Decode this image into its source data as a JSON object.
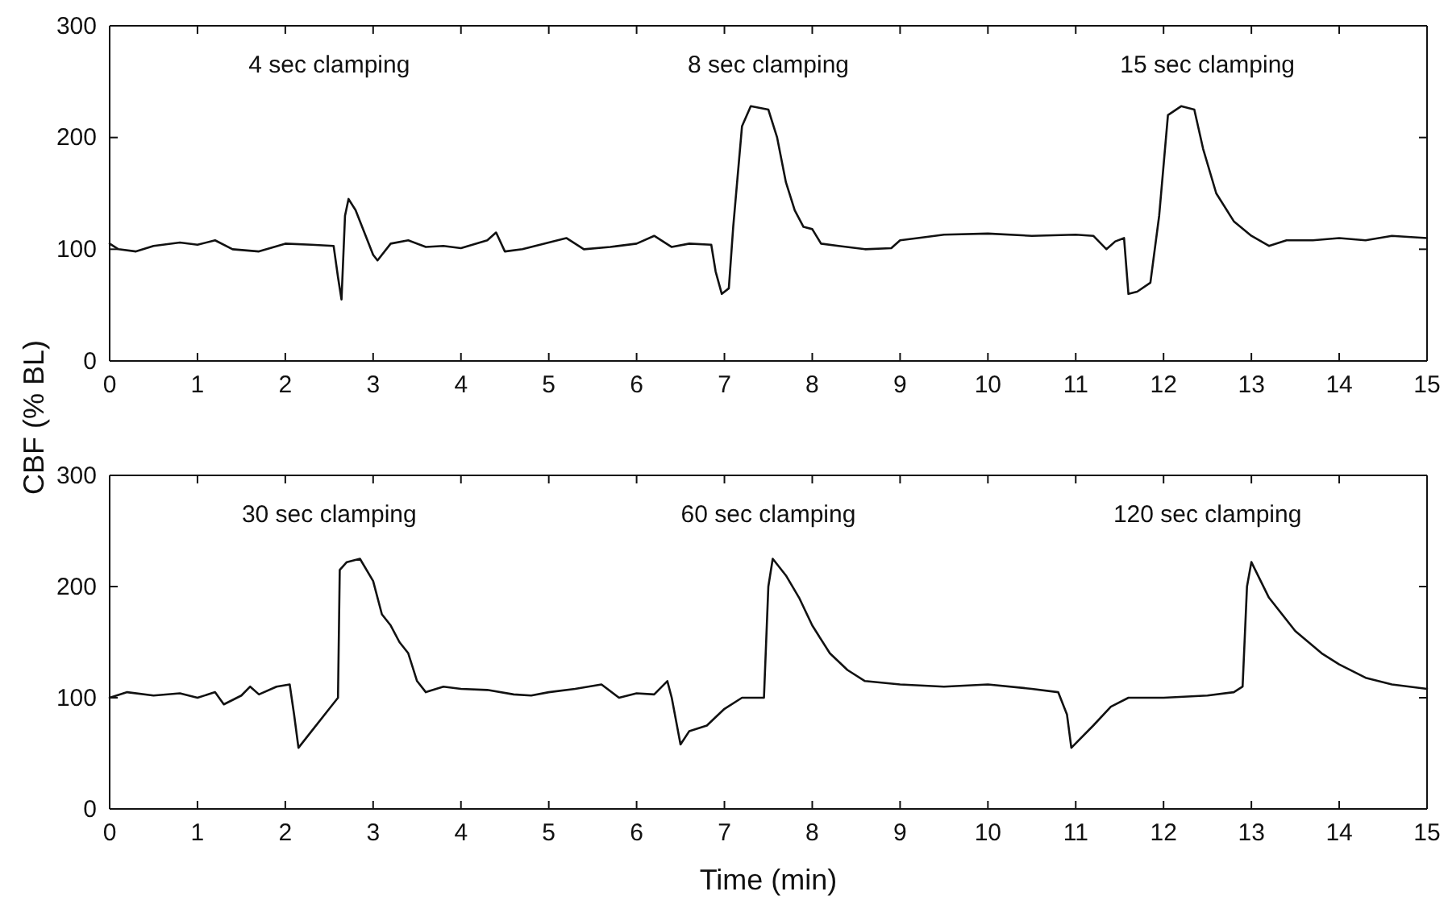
{
  "chart_data": [
    {
      "type": "line",
      "ylabel": "CBF (% BL)",
      "xlim": [
        0,
        15
      ],
      "ylim": [
        0,
        300
      ],
      "xticks": [
        0,
        1,
        2,
        3,
        4,
        5,
        6,
        7,
        8,
        9,
        10,
        11,
        12,
        13,
        14,
        15
      ],
      "yticks": [
        0,
        100,
        200,
        300
      ],
      "grid": false,
      "annotations": [
        "4 sec clamping",
        "8 sec clamping",
        "15 sec clamping"
      ],
      "series": [
        {
          "color": "#111111",
          "x": [
            0,
            0.1,
            0.3,
            0.5,
            0.8,
            1.0,
            1.2,
            1.4,
            1.7,
            2.0,
            2.3,
            2.55,
            2.6,
            2.64,
            2.68,
            2.72,
            2.8,
            2.9,
            3.0,
            3.05,
            3.2,
            3.4,
            3.6,
            3.8,
            4.0,
            4.3,
            4.4,
            4.5,
            4.7,
            5.0,
            5.2,
            5.4,
            5.7,
            6.0,
            6.2,
            6.4,
            6.6,
            6.85,
            6.9,
            6.97,
            7.05,
            7.1,
            7.2,
            7.3,
            7.5,
            7.6,
            7.7,
            7.8,
            7.9,
            8.0,
            8.1,
            8.3,
            8.6,
            8.9,
            9.0,
            9.2,
            9.5,
            10.0,
            10.5,
            11.0,
            11.2,
            11.35,
            11.45,
            11.55,
            11.6,
            11.7,
            11.85,
            11.95,
            12.05,
            12.2,
            12.35,
            12.45,
            12.6,
            12.8,
            13.0,
            13.2,
            13.4,
            13.7,
            14.0,
            14.3,
            14.6,
            15.0
          ],
          "values": [
            105,
            100,
            98,
            103,
            106,
            104,
            108,
            100,
            98,
            105,
            104,
            103,
            75,
            55,
            130,
            145,
            135,
            115,
            95,
            90,
            105,
            108,
            102,
            103,
            101,
            108,
            115,
            98,
            100,
            106,
            110,
            100,
            102,
            105,
            112,
            102,
            105,
            104,
            80,
            60,
            65,
            120,
            210,
            228,
            225,
            200,
            160,
            135,
            120,
            118,
            105,
            103,
            100,
            101,
            108,
            110,
            113,
            114,
            112,
            113,
            112,
            100,
            107,
            110,
            60,
            62,
            70,
            130,
            220,
            228,
            225,
            190,
            150,
            125,
            112,
            103,
            108,
            108,
            110,
            108,
            112,
            110
          ]
        }
      ]
    },
    {
      "type": "line",
      "xlabel": "Time (min)",
      "xlim": [
        0,
        15
      ],
      "ylim": [
        0,
        300
      ],
      "xticks": [
        0,
        1,
        2,
        3,
        4,
        5,
        6,
        7,
        8,
        9,
        10,
        11,
        12,
        13,
        14,
        15
      ],
      "yticks": [
        0,
        100,
        200,
        300
      ],
      "grid": false,
      "annotations": [
        "30 sec clamping",
        "60 sec clamping",
        "120 sec clamping"
      ],
      "series": [
        {
          "color": "#111111",
          "x": [
            0,
            0.2,
            0.5,
            0.8,
            1.0,
            1.2,
            1.3,
            1.5,
            1.6,
            1.7,
            1.9,
            2.05,
            2.1,
            2.15,
            2.3,
            2.5,
            2.6,
            2.62,
            2.7,
            2.85,
            3.0,
            3.1,
            3.2,
            3.3,
            3.4,
            3.5,
            3.6,
            3.8,
            4.0,
            4.3,
            4.6,
            4.8,
            5.0,
            5.3,
            5.6,
            5.8,
            6.0,
            6.2,
            6.35,
            6.4,
            6.5,
            6.6,
            6.8,
            7.0,
            7.2,
            7.45,
            7.5,
            7.55,
            7.7,
            7.85,
            8.0,
            8.2,
            8.4,
            8.6,
            9.0,
            9.5,
            10.0,
            10.5,
            10.8,
            10.9,
            10.95,
            11.2,
            11.4,
            11.6,
            12.0,
            12.5,
            12.8,
            12.9,
            12.95,
            13.0,
            13.2,
            13.5,
            13.8,
            14.0,
            14.3,
            14.6,
            15.0
          ],
          "values": [
            100,
            105,
            102,
            104,
            100,
            105,
            94,
            102,
            110,
            103,
            110,
            112,
            85,
            55,
            70,
            90,
            100,
            215,
            222,
            225,
            205,
            175,
            165,
            150,
            140,
            115,
            105,
            110,
            108,
            107,
            103,
            102,
            105,
            108,
            112,
            100,
            104,
            103,
            115,
            100,
            58,
            70,
            75,
            90,
            100,
            100,
            200,
            225,
            210,
            190,
            165,
            140,
            125,
            115,
            112,
            110,
            112,
            108,
            105,
            85,
            55,
            75,
            92,
            100,
            100,
            102,
            105,
            110,
            200,
            222,
            190,
            160,
            140,
            130,
            118,
            112,
            108
          ]
        }
      ]
    }
  ]
}
